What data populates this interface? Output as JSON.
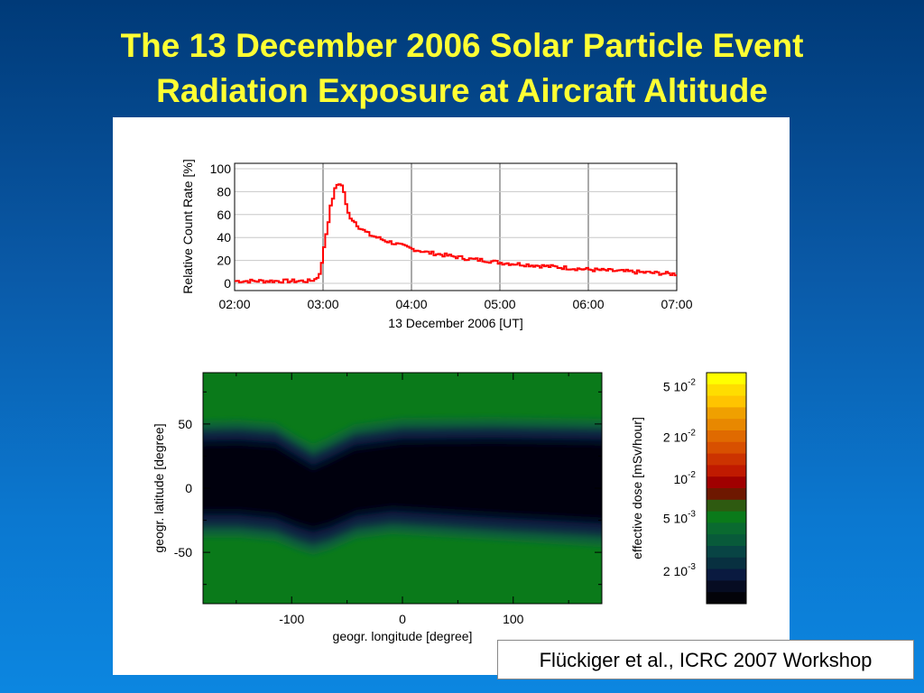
{
  "slide": {
    "title_line1": "The 13 December 2006 Solar Particle Event",
    "title_line2": "Radiation Exposure at Aircraft Altitude",
    "citation": "Flückiger et al., ICRC 2007 Workshop",
    "title_color": "#ffff33"
  },
  "chart_data": [
    {
      "type": "line",
      "xlabel": "13 December 2006 [UT]",
      "ylabel": "Relative Count Rate [%]",
      "x_tick_labels": [
        "02:00",
        "03:00",
        "04:00",
        "05:00",
        "06:00",
        "07:00"
      ],
      "y_tick_labels": [
        "0",
        "20",
        "40",
        "60",
        "80",
        "100"
      ],
      "xlim": [
        "02:00",
        "07:00"
      ],
      "ylim": [
        0,
        100
      ],
      "grid": true,
      "series": [
        {
          "color": "#ff0000",
          "x": [
            "02:00",
            "02:30",
            "02:50",
            "02:55",
            "02:58",
            "03:00",
            "03:03",
            "03:05",
            "03:07",
            "03:09",
            "03:10",
            "03:11",
            "03:12",
            "03:13",
            "03:14",
            "03:15",
            "03:16",
            "03:17",
            "03:18",
            "03:20",
            "03:25",
            "03:30",
            "03:40",
            "03:50",
            "04:00",
            "04:10",
            "04:20",
            "04:30",
            "04:40",
            "04:50",
            "05:00",
            "05:10",
            "05:20",
            "05:30",
            "05:40",
            "05:50",
            "06:00",
            "06:15",
            "06:30",
            "06:45",
            "07:00"
          ],
          "y": [
            2,
            2,
            2,
            4,
            12,
            32,
            55,
            70,
            80,
            86,
            88,
            87,
            85,
            82,
            78,
            68,
            62,
            60,
            58,
            55,
            48,
            43,
            38,
            34,
            30,
            27,
            25,
            23,
            21,
            20,
            18,
            17,
            16,
            15,
            14,
            13,
            12,
            11,
            10,
            9,
            8
          ]
        }
      ]
    },
    {
      "type": "heatmap",
      "xlabel": "geogr. longitude [degree]",
      "ylabel": "geogr. latitude [degree]",
      "x_tick_labels": [
        "-100",
        "0",
        "100"
      ],
      "y_tick_labels": [
        "50",
        "0",
        "-50"
      ],
      "xlim": [
        -180,
        180
      ],
      "ylim": [
        -90,
        90
      ],
      "colorbar": {
        "label": "effective dose [mSv/hour]",
        "tick_labels": [
          {
            "mantissa": "5 10",
            "exponent": "-2"
          },
          {
            "mantissa": "2 10",
            "exponent": "-2"
          },
          {
            "mantissa": "10",
            "exponent": "-2"
          },
          {
            "mantissa": "5 10",
            "exponent": "-3"
          },
          {
            "mantissa": "2 10",
            "exponent": "-3"
          }
        ],
        "colors": [
          "#ffff00",
          "#ffdd00",
          "#ffc400",
          "#f0a000",
          "#e88800",
          "#e06a00",
          "#d85000",
          "#cc3300",
          "#c01a00",
          "#a00000",
          "#6e1800",
          "#2e5a10",
          "#0a7a1a",
          "#0a6a30",
          "#085a3a",
          "#084444",
          "#083040",
          "#0a1a40",
          "#060c22",
          "#030309"
        ]
      }
    }
  ]
}
